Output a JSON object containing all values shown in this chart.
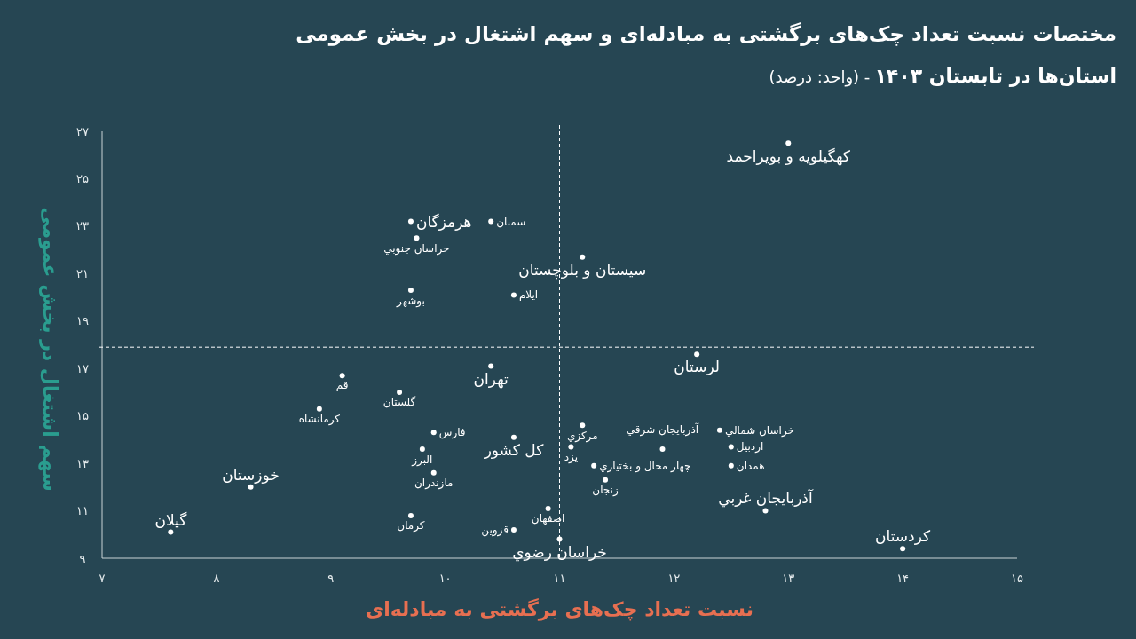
{
  "chart_data": {
    "type": "scatter",
    "title": "مختصات نسبت تعداد چک‌های برگشتی به مبادله‌ای و سهم اشتغال در بخش عمومی",
    "subtitle": "استان‌ها در تابستان ۱۴۰۳",
    "annotations": [
      "- (واحد: درصد)"
    ],
    "xlabel": "نسبت تعداد چک‌های برگشتی به مبادله‌ای",
    "ylabel": "سهم اشتغال در بخش عمومی",
    "xlim": [
      7,
      15
    ],
    "ylim": [
      9,
      27
    ],
    "xticks": [
      {
        "value": 7,
        "label": "۷"
      },
      {
        "value": 8,
        "label": "۸"
      },
      {
        "value": 9,
        "label": "۹"
      },
      {
        "value": 10,
        "label": "۱۰"
      },
      {
        "value": 11,
        "label": "۱۱"
      },
      {
        "value": 12,
        "label": "۱۲"
      },
      {
        "value": 13,
        "label": "۱۳"
      },
      {
        "value": 14,
        "label": "۱۴"
      },
      {
        "value": 15,
        "label": "۱۵"
      }
    ],
    "yticks": [
      {
        "value": 9,
        "label": "۹"
      },
      {
        "value": 11,
        "label": "۱۱"
      },
      {
        "value": 13,
        "label": "۱۳"
      },
      {
        "value": 15,
        "label": "۱۵"
      },
      {
        "value": 17,
        "label": "۱۷"
      },
      {
        "value": 19,
        "label": "۱۹"
      },
      {
        "value": 21,
        "label": "۲۱"
      },
      {
        "value": 23,
        "label": "۲۳"
      },
      {
        "value": 25,
        "label": "۲۵"
      },
      {
        "value": 27,
        "label": "۲۷"
      }
    ],
    "marker": "circle",
    "ref_lines": [
      {
        "axis": "x",
        "value": 11,
        "color": "#ffffff",
        "line_style": "dashed"
      },
      {
        "axis": "y",
        "value": 17.9,
        "color": "#ffffff",
        "line_style": "dashed"
      }
    ],
    "series": [
      {
        "color": "#ffffff",
        "x": [
          13.0,
          9.7,
          11.2,
          12.2,
          10.4,
          10.6,
          8.3,
          12.8,
          7.6,
          11.0,
          14.0
        ],
        "values": [
          26.5,
          23.2,
          21.7,
          17.6,
          17.1,
          14.1,
          12.0,
          11.0,
          10.1,
          9.8,
          9.4
        ],
        "value_labels": [
          "کهگیلویه و بویراحمد",
          "هرمزگان",
          "سیستان و بلوچستان",
          "لرستان",
          "تهران",
          "کل کشور",
          "خوزستان",
          "آذربایجان غربي",
          "گیلان",
          "خراسان رضوي",
          "کردستان"
        ]
      },
      {
        "color": "#ffffff",
        "x": [
          10.4,
          9.75,
          9.7,
          10.6,
          9.1,
          9.6,
          8.9,
          11.2,
          9.9,
          12.4,
          11.1,
          11.9,
          12.5,
          9.8,
          11.3,
          12.5,
          9.9,
          11.4,
          10.9,
          9.7,
          10.6
        ],
        "values": [
          23.2,
          22.5,
          20.3,
          20.1,
          16.7,
          16.0,
          15.3,
          14.6,
          14.3,
          14.4,
          13.7,
          13.6,
          13.7,
          13.6,
          12.9,
          12.9,
          12.6,
          12.3,
          11.1,
          10.8,
          10.2
        ],
        "value_labels": [
          "سمنان",
          "خراسان جنوبي",
          "بوشهر",
          "ایلام",
          "قم",
          "گلستان",
          "کرمانشاه",
          "مرکزي",
          "فارس",
          "خراسان شمالي",
          "یزد",
          "آذربایجان شرقي",
          "اردبیل",
          "البرز",
          "چهار محال و بختیاري",
          "همدان",
          "مازندران",
          "زنجان",
          "اصفهان",
          "کرمان",
          "قزوین"
        ]
      }
    ]
  }
}
